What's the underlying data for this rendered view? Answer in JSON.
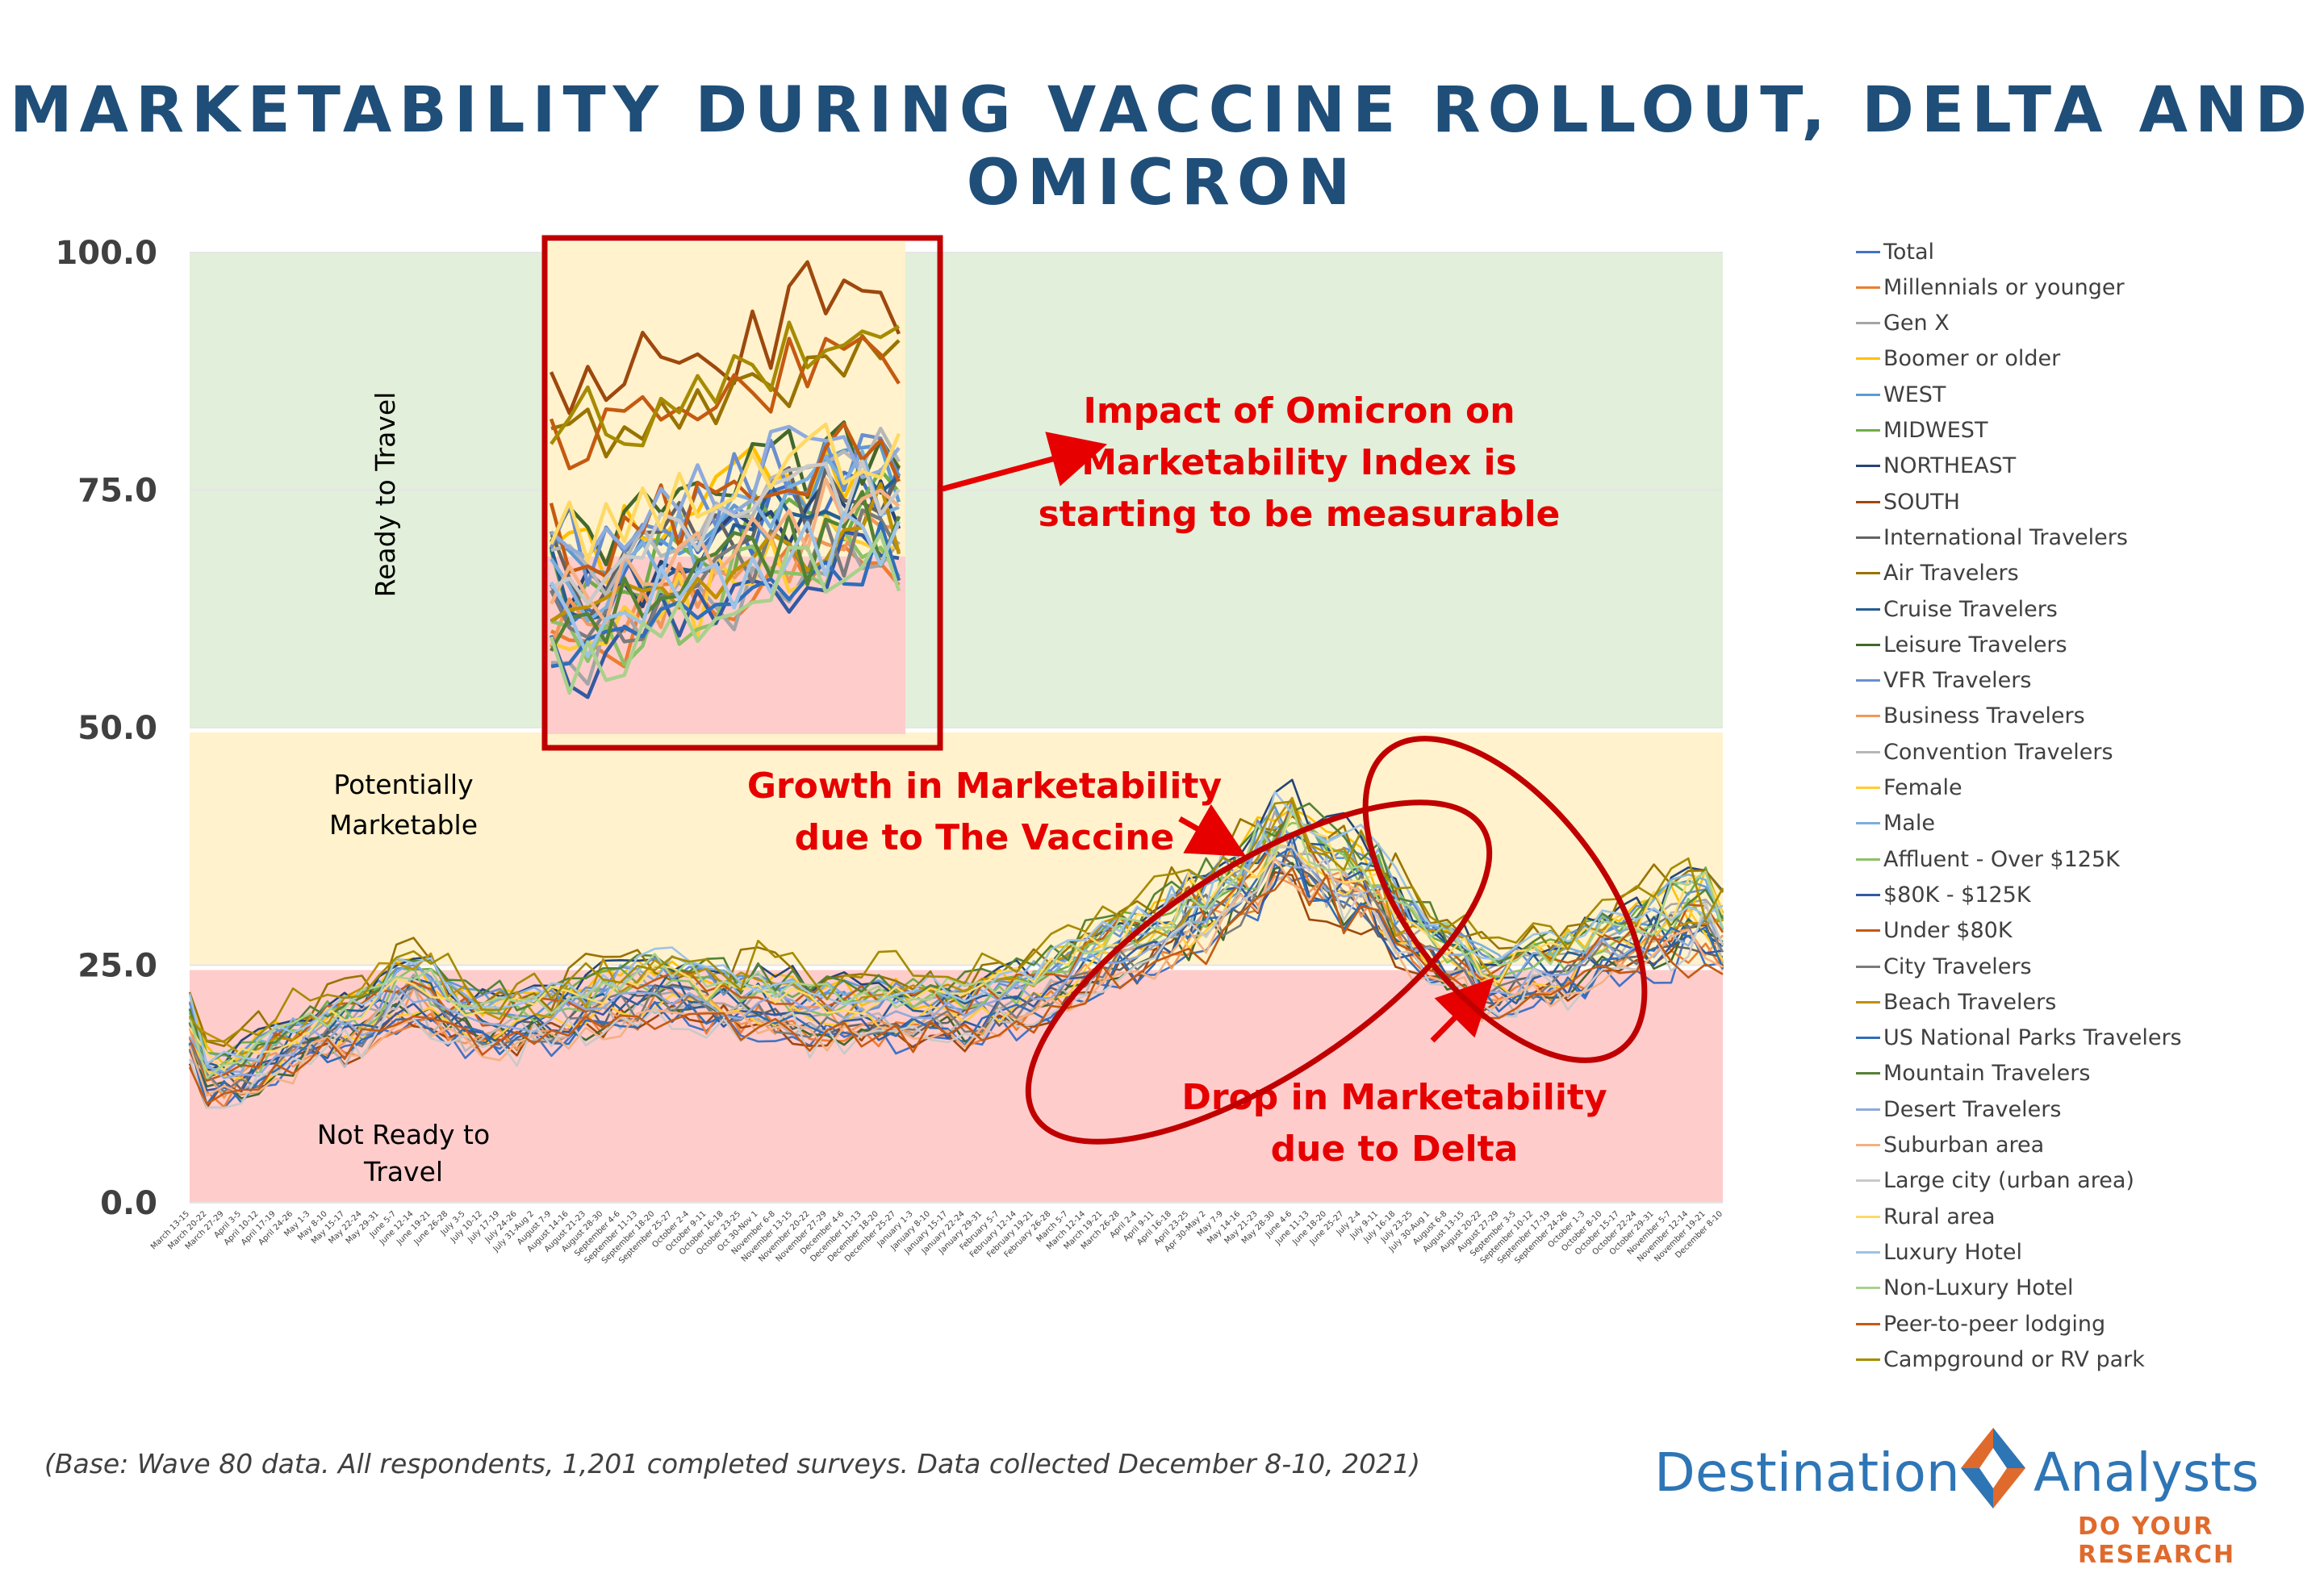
{
  "title": "MARKETABILITY DURING VACCINE ROLLOUT, DELTA AND OMICRON",
  "footnote": "(Base: Wave 80 data. All respondents, 1,201 completed surveys. Data collected December 8-10, 2021)",
  "logo": {
    "word1": "Destination",
    "word2": "Analysts",
    "tagline": "DO YOUR RESEARCH",
    "colors": {
      "blue": "#2e75b6",
      "orange": "#e06a2c"
    }
  },
  "zones": [
    {
      "label": "Ready to Travel",
      "from": 50,
      "to": 100,
      "color": "#e2efda"
    },
    {
      "label": "Potentially\nMarketable",
      "from": 25,
      "to": 50,
      "color": "#fff2cc"
    },
    {
      "label": "Not Ready to\nTravel",
      "from": 0,
      "to": 25,
      "color": "#ffcccc"
    }
  ],
  "callouts": {
    "omicron": "Impact of Omicron on\nMarketability Index is\nstarting to be measurable",
    "vaccine": "Growth in Marketability\ndue to The Vaccine",
    "delta": "Drop in Marketability\ndue to Delta",
    "color": "#e60000",
    "ring_color": "#c00000"
  },
  "chart_data": {
    "type": "line",
    "ylim": [
      0,
      100
    ],
    "yticks": [
      "0.0",
      "25.0",
      "50.0",
      "75.0",
      "100.0"
    ],
    "x": [
      "March 13-15",
      "March 20-22",
      "March 27-29",
      "April 3-5",
      "April 10-12",
      "April 17-19",
      "April 24-26",
      "May 1-3",
      "May 8-10",
      "May 15-17",
      "May 22-24",
      "May 29-31",
      "June 5-7",
      "June 12-14",
      "June 19-21",
      "June 26-28",
      "July 3-5",
      "July 10-12",
      "July 17-19",
      "July 24-26",
      "July 31-Aug 2",
      "August 7-9",
      "August 14-16",
      "August 21-23",
      "August 28-30",
      "September 4-6",
      "September 11-13",
      "September 18-20",
      "September 25-27",
      "October 2-4",
      "October 9-11",
      "October 16-18",
      "October 23-25",
      "Oct 30-Nov 1",
      "November 6-8",
      "November 13-15",
      "November 20-22",
      "November 27-29",
      "December 4-6",
      "December 11-13",
      "December 18-20",
      "December 25-27",
      "January 1-3",
      "January 8-10",
      "January 15-17",
      "January 22-24",
      "January 29-31",
      "February 5-7",
      "February 12-14",
      "February 19-21",
      "February 26-28",
      "March 5-7",
      "March 12-14",
      "March 19-21",
      "March 26-28",
      "April 2-4",
      "April 9-11",
      "April 16-18",
      "April 23-25",
      "Apr 30-May 2",
      "May 7-9",
      "May 14-16",
      "May 21-23",
      "May 28-30",
      "June 4-6",
      "June 11-13",
      "June 18-20",
      "June 25-27",
      "July 2-4",
      "July 9-11",
      "July 16-18",
      "July 23-25",
      "July 30-Aug 1",
      "August 6-8",
      "August 13-15",
      "August 20-22",
      "August 27-29",
      "September 3-5",
      "September 10-12",
      "September 17-19",
      "September 24-26",
      "October 1-3",
      "October 8-10",
      "October 15-17",
      "October 22-24",
      "October 29-31",
      "November 5-7",
      "November 12-14",
      "November 19-21",
      "December 8-10"
    ],
    "total": [
      18,
      13,
      13,
      13.5,
      14.5,
      15.5,
      16.5,
      17.5,
      18,
      18.5,
      19,
      20,
      21.5,
      22.5,
      21.5,
      20,
      19.5,
      19,
      19,
      19,
      19.5,
      19.5,
      20,
      20.5,
      21,
      21.5,
      22,
      22.5,
      22.5,
      22,
      21.5,
      21.5,
      21,
      21,
      20.5,
      20.5,
      20,
      20,
      20,
      20,
      20,
      20,
      20,
      20,
      20,
      20,
      20.5,
      21,
      21.5,
      22,
      23,
      24,
      25,
      26,
      27,
      27.5,
      28,
      29,
      30,
      31,
      32,
      33.5,
      35,
      37,
      38,
      36,
      35,
      34.5,
      34,
      32,
      30,
      28,
      27,
      26,
      25,
      23.5,
      23,
      23.5,
      24,
      24.5,
      25,
      26,
      27,
      27.5,
      28,
      28.5,
      29,
      29.5,
      30,
      28
    ],
    "omicron_inset": [
      65,
      64,
      63,
      64,
      65,
      66,
      67,
      68,
      68,
      69,
      70,
      71,
      71,
      72,
      72,
      73,
      73,
      74,
      74,
      73
    ],
    "series": [
      {
        "name": "Total",
        "color": "#4472c4"
      },
      {
        "name": "Millennials or younger",
        "color": "#ed7d31"
      },
      {
        "name": "Gen X",
        "color": "#a5a5a5"
      },
      {
        "name": "Boomer or older",
        "color": "#ffc000"
      },
      {
        "name": "WEST",
        "color": "#5b9bd5"
      },
      {
        "name": "MIDWEST",
        "color": "#70ad47"
      },
      {
        "name": "NORTHEAST",
        "color": "#264478"
      },
      {
        "name": "SOUTH",
        "color": "#9e480e"
      },
      {
        "name": "International Travelers",
        "color": "#636363"
      },
      {
        "name": "Air Travelers",
        "color": "#997300"
      },
      {
        "name": "Cruise Travelers",
        "color": "#255e91"
      },
      {
        "name": "Leisure Travelers",
        "color": "#43682b"
      },
      {
        "name": "VFR Travelers",
        "color": "#698ed0"
      },
      {
        "name": "Business Travelers",
        "color": "#f1975a"
      },
      {
        "name": "Convention Travelers",
        "color": "#b7b7b7"
      },
      {
        "name": "Female",
        "color": "#ffcd33"
      },
      {
        "name": "Male",
        "color": "#7cafdd"
      },
      {
        "name": "Affluent - Over $125K",
        "color": "#8cc168"
      },
      {
        "name": "$80K - $125K",
        "color": "#335aa1"
      },
      {
        "name": "Under $80K",
        "color": "#c55a11"
      },
      {
        "name": "City Travelers",
        "color": "#7b7b7b"
      },
      {
        "name": "Beach Travelers",
        "color": "#bf9000"
      },
      {
        "name": "US National Parks Travelers",
        "color": "#2f6eba"
      },
      {
        "name": "Mountain Travelers",
        "color": "#548235"
      },
      {
        "name": "Desert Travelers",
        "color": "#8faadc"
      },
      {
        "name": "Suburban area",
        "color": "#f4b183"
      },
      {
        "name": "Large city (urban area)",
        "color": "#c9c9c9"
      },
      {
        "name": "Rural area",
        "color": "#ffd966"
      },
      {
        "name": "Luxury Hotel",
        "color": "#9dc3e6"
      },
      {
        "name": "Non-Luxury Hotel",
        "color": "#a9d18e"
      },
      {
        "name": "Peer-to-peer lodging",
        "color": "#c55a11"
      },
      {
        "name": "Campground or RV park",
        "color": "#a68b00"
      }
    ]
  }
}
